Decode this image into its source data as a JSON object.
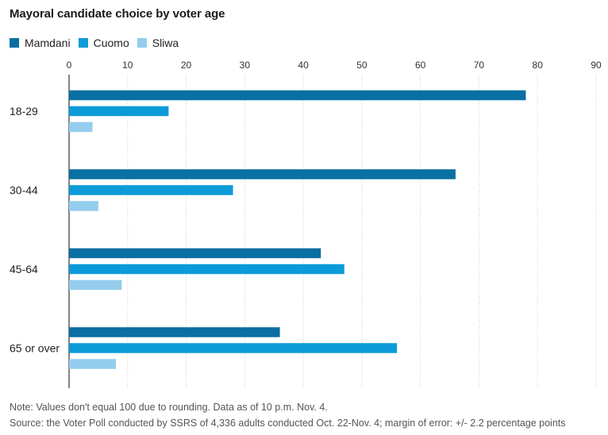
{
  "chart_data": {
    "type": "bar",
    "orientation": "horizontal",
    "title": "Mayoral candidate choice by voter age",
    "categories": [
      "18-29",
      "30-44",
      "45-64",
      "65 or over"
    ],
    "series": [
      {
        "name": "Mamdani",
        "values": [
          78,
          66,
          43,
          36
        ],
        "color": "#0a6fa3"
      },
      {
        "name": "Cuomo",
        "values": [
          17,
          28,
          47,
          56
        ],
        "color": "#0c9ad9"
      },
      {
        "name": "Sliwa",
        "values": [
          4,
          5,
          9,
          8
        ],
        "color": "#94cdee"
      }
    ],
    "xlim": [
      0,
      90
    ],
    "xticks": [
      "0",
      "10",
      "20",
      "30",
      "40",
      "50",
      "60",
      "70",
      "80",
      "90"
    ],
    "xlabel": "",
    "ylabel": "",
    "grid": true,
    "legend": "top-left"
  },
  "notes": {
    "note": "Note: Values don't equal 100 due to rounding. Data as of 10 p.m. Nov. 4.",
    "source": "Source: the Voter Poll conducted by SSRS of 4,336 adults conducted Oct. 22-Nov. 4; margin of error: +/- 2.2 percentage points"
  }
}
